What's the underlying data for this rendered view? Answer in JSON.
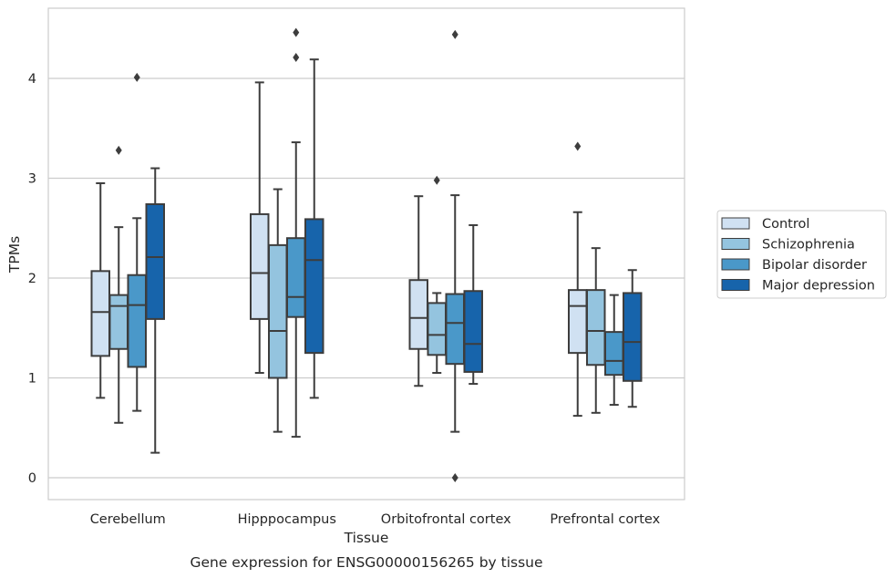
{
  "chart_data": {
    "type": "box",
    "title": "Gene expression for ENSG00000156265 by tissue",
    "xlabel": "Tissue",
    "ylabel": "TPMs",
    "ylim": [
      -0.2,
      4.7
    ],
    "yticks": [
      0,
      1,
      2,
      3,
      4
    ],
    "grid": "horizontal",
    "legend_position": "right",
    "categories": [
      "Cerebellum",
      "Hipppocampus",
      "Orbitofrontal cortex",
      "Prefrontal cortex"
    ],
    "series": [
      {
        "name": "Control",
        "color": "#d0e1f2",
        "boxes": [
          {
            "whislo": 0.8,
            "q1": 1.22,
            "med": 1.66,
            "q3": 2.07,
            "whishi": 2.95,
            "fliers": []
          },
          {
            "whislo": 1.05,
            "q1": 1.59,
            "med": 2.05,
            "q3": 2.64,
            "whishi": 3.96,
            "fliers": []
          },
          {
            "whislo": 0.92,
            "q1": 1.29,
            "med": 1.6,
            "q3": 1.98,
            "whishi": 2.82,
            "fliers": []
          },
          {
            "whislo": 0.62,
            "q1": 1.25,
            "med": 1.72,
            "q3": 1.88,
            "whishi": 2.66,
            "fliers": [
              3.32
            ]
          }
        ]
      },
      {
        "name": "Schizophrenia",
        "color": "#94c4df",
        "boxes": [
          {
            "whislo": 0.55,
            "q1": 1.29,
            "med": 1.72,
            "q3": 1.83,
            "whishi": 2.51,
            "fliers": [
              3.28
            ]
          },
          {
            "whislo": 0.46,
            "q1": 1.0,
            "med": 1.47,
            "q3": 2.33,
            "whishi": 2.89,
            "fliers": []
          },
          {
            "whislo": 1.05,
            "q1": 1.23,
            "med": 1.43,
            "q3": 1.75,
            "whishi": 1.85,
            "fliers": [
              2.98
            ]
          },
          {
            "whislo": 0.65,
            "q1": 1.13,
            "med": 1.47,
            "q3": 1.88,
            "whishi": 2.3,
            "fliers": []
          }
        ]
      },
      {
        "name": "Bipolar disorder",
        "color": "#4a98c9",
        "boxes": [
          {
            "whislo": 0.67,
            "q1": 1.11,
            "med": 1.73,
            "q3": 2.03,
            "whishi": 2.6,
            "fliers": [
              4.01
            ]
          },
          {
            "whislo": 0.41,
            "q1": 1.61,
            "med": 1.81,
            "q3": 2.4,
            "whishi": 3.36,
            "fliers": [
              4.21,
              4.46
            ]
          },
          {
            "whislo": 0.46,
            "q1": 1.14,
            "med": 1.55,
            "q3": 1.84,
            "whishi": 2.83,
            "fliers": [
              0.0,
              4.44
            ]
          },
          {
            "whislo": 0.73,
            "q1": 1.03,
            "med": 1.17,
            "q3": 1.46,
            "whishi": 1.83,
            "fliers": []
          }
        ]
      },
      {
        "name": "Major depression",
        "color": "#1764ab",
        "boxes": [
          {
            "whislo": 0.25,
            "q1": 1.59,
            "med": 2.21,
            "q3": 2.74,
            "whishi": 3.1,
            "fliers": []
          },
          {
            "whislo": 0.8,
            "q1": 1.25,
            "med": 2.18,
            "q3": 2.59,
            "whishi": 4.19,
            "fliers": []
          },
          {
            "whislo": 0.94,
            "q1": 1.06,
            "med": 1.34,
            "q3": 1.87,
            "whishi": 2.53,
            "fliers": []
          },
          {
            "whislo": 0.71,
            "q1": 0.97,
            "med": 1.36,
            "q3": 1.85,
            "whishi": 2.08,
            "fliers": []
          }
        ]
      }
    ]
  }
}
